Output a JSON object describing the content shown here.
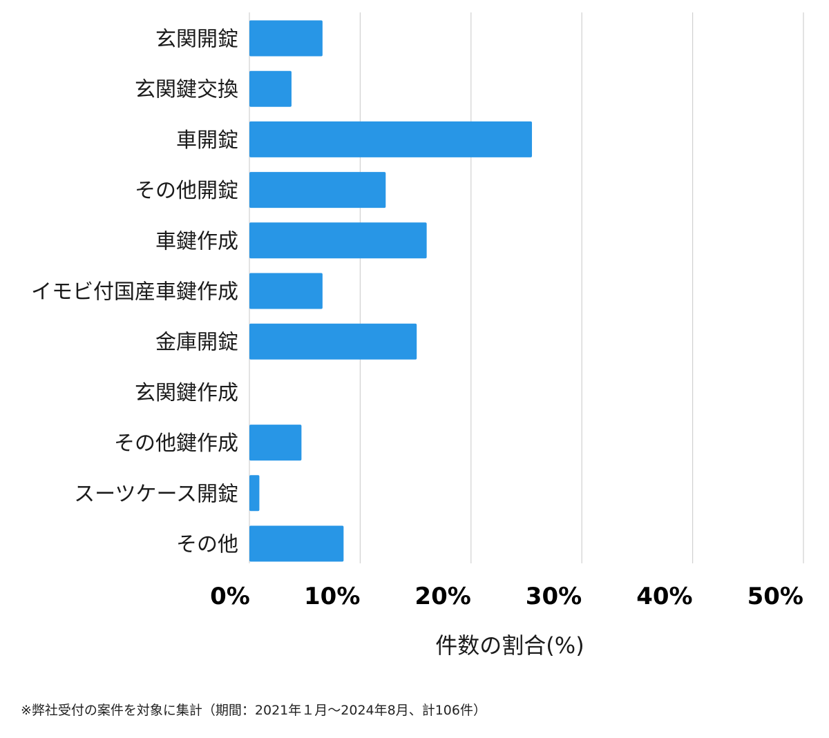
{
  "chart_data": {
    "type": "bar",
    "orientation": "horizontal",
    "categories": [
      "玄関開錠",
      "玄関鍵交換",
      "車開錠",
      "その他開錠",
      "車鍵作成",
      "イモビ付国産車鍵作成",
      "金庫開錠",
      "玄関鍵作成",
      "その他鍵作成",
      "スーツケース開錠",
      "その他"
    ],
    "values": [
      6.6,
      3.8,
      25.5,
      12.3,
      16.0,
      6.6,
      15.1,
      0.0,
      4.7,
      0.9,
      8.5
    ],
    "xlabel": "件数の割合(%)",
    "ylabel": "",
    "title": "",
    "xlim": [
      0,
      50
    ],
    "ticks": [
      0,
      10,
      20,
      30,
      40,
      50
    ],
    "tick_labels": [
      "0%",
      "10%",
      "20%",
      "30%",
      "40%",
      "50%"
    ],
    "grid": "vertical",
    "bar_color": "#2896e6",
    "grid_color": "#d0d0d0"
  },
  "footnote": "※弊社受付の案件を対象に集計（期間：2021年１月〜2024年8月、計106件）"
}
